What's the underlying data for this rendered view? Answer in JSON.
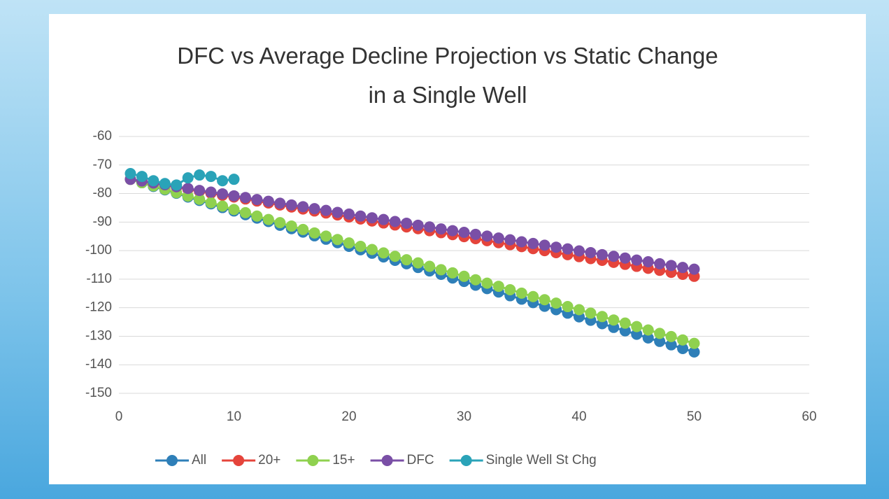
{
  "chart_data": {
    "type": "line",
    "title": "DFC vs Average Decline Projection vs Static Change in a Single Well",
    "x": [
      1,
      2,
      3,
      4,
      5,
      6,
      7,
      8,
      9,
      10,
      11,
      12,
      13,
      14,
      15,
      16,
      17,
      18,
      19,
      20,
      21,
      22,
      23,
      24,
      25,
      26,
      27,
      28,
      29,
      30,
      31,
      32,
      33,
      34,
      35,
      36,
      37,
      38,
      39,
      40,
      41,
      42,
      43,
      44,
      45,
      46,
      47,
      48,
      49,
      50
    ],
    "xlim": [
      0,
      60
    ],
    "xticks": [
      0,
      10,
      20,
      30,
      40,
      50,
      60
    ],
    "ylim": [
      -150,
      -60
    ],
    "yticks": [
      -60,
      -70,
      -80,
      -90,
      -100,
      -110,
      -120,
      -130,
      -140,
      -150
    ],
    "grid": true,
    "legend": "bottom",
    "series": [
      {
        "name": "All",
        "color": "#2e7fb8",
        "values": [
          -75,
          -76.2,
          -77.5,
          -78.7,
          -79.9,
          -81.2,
          -82.4,
          -83.6,
          -84.9,
          -86.1,
          -87.4,
          -88.6,
          -89.8,
          -91.1,
          -92.3,
          -93.5,
          -94.8,
          -96.0,
          -97.2,
          -98.5,
          -99.7,
          -100.9,
          -102.2,
          -103.4,
          -104.6,
          -105.9,
          -107.1,
          -108.3,
          -109.6,
          -110.8,
          -112.1,
          -113.3,
          -114.5,
          -115.8,
          -117.0,
          -118.2,
          -119.5,
          -120.7,
          -121.9,
          -123.2,
          -124.4,
          -125.6,
          -126.9,
          -128.1,
          -129.3,
          -130.6,
          -131.8,
          -133.0,
          -134.3,
          -135.5
        ]
      },
      {
        "name": "20+",
        "color": "#e5443b",
        "values": [
          -75,
          -75.7,
          -76.4,
          -77.1,
          -77.8,
          -78.5,
          -79.2,
          -79.9,
          -80.6,
          -81.2,
          -81.9,
          -82.6,
          -83.3,
          -84.0,
          -84.7,
          -85.4,
          -86.1,
          -86.8,
          -87.5,
          -88.2,
          -88.9,
          -89.6,
          -90.3,
          -91.0,
          -91.7,
          -92.3,
          -93.0,
          -93.7,
          -94.4,
          -95.1,
          -95.8,
          -96.5,
          -97.2,
          -97.9,
          -98.6,
          -99.3,
          -100.0,
          -100.7,
          -101.4,
          -102.1,
          -102.8,
          -103.4,
          -104.1,
          -104.8,
          -105.5,
          -106.2,
          -106.9,
          -107.6,
          -108.3,
          -109.0
        ]
      },
      {
        "name": "15+",
        "color": "#8fd14f",
        "values": [
          -75,
          -76.2,
          -77.3,
          -78.5,
          -79.7,
          -80.9,
          -82.0,
          -83.2,
          -84.4,
          -85.6,
          -86.7,
          -87.9,
          -89.1,
          -90.2,
          -91.4,
          -92.6,
          -93.8,
          -94.9,
          -96.1,
          -97.3,
          -98.5,
          -99.6,
          -100.8,
          -102.0,
          -103.2,
          -104.3,
          -105.5,
          -106.7,
          -107.8,
          -109.0,
          -110.2,
          -111.4,
          -112.5,
          -113.7,
          -114.9,
          -116.1,
          -117.2,
          -118.4,
          -119.6,
          -120.7,
          -121.9,
          -123.1,
          -124.3,
          -125.4,
          -126.6,
          -127.8,
          -129.0,
          -130.1,
          -131.3,
          -132.5
        ]
      },
      {
        "name": "DFC",
        "color": "#7a4fa6",
        "values": [
          -75,
          -75.6,
          -76.3,
          -76.9,
          -77.6,
          -78.2,
          -78.9,
          -79.5,
          -80.1,
          -80.8,
          -81.4,
          -82.1,
          -82.7,
          -83.4,
          -84.0,
          -84.6,
          -85.3,
          -85.9,
          -86.6,
          -87.2,
          -87.9,
          -88.5,
          -89.1,
          -89.8,
          -90.4,
          -91.1,
          -91.7,
          -92.4,
          -93.0,
          -93.6,
          -94.3,
          -94.9,
          -95.6,
          -96.2,
          -96.9,
          -97.5,
          -98.1,
          -98.8,
          -99.4,
          -100.1,
          -100.7,
          -101.4,
          -102.0,
          -102.6,
          -103.3,
          -103.9,
          -104.6,
          -105.2,
          -105.9,
          -106.5
        ]
      },
      {
        "name": "Single Well St Chg",
        "color": "#2aa3b8",
        "values": [
          -73,
          -74,
          -75.5,
          -76.5,
          -77,
          -74.5,
          -73.5,
          -74,
          -75.5,
          -75,
          null,
          null,
          null,
          null,
          null,
          null,
          null,
          null,
          null,
          null,
          null,
          null,
          null,
          null,
          null,
          null,
          null,
          null,
          null,
          null,
          null,
          null,
          null,
          null,
          null,
          null,
          null,
          null,
          null,
          null,
          null,
          null,
          null,
          null,
          null,
          null,
          null,
          null,
          null,
          null
        ]
      }
    ]
  }
}
